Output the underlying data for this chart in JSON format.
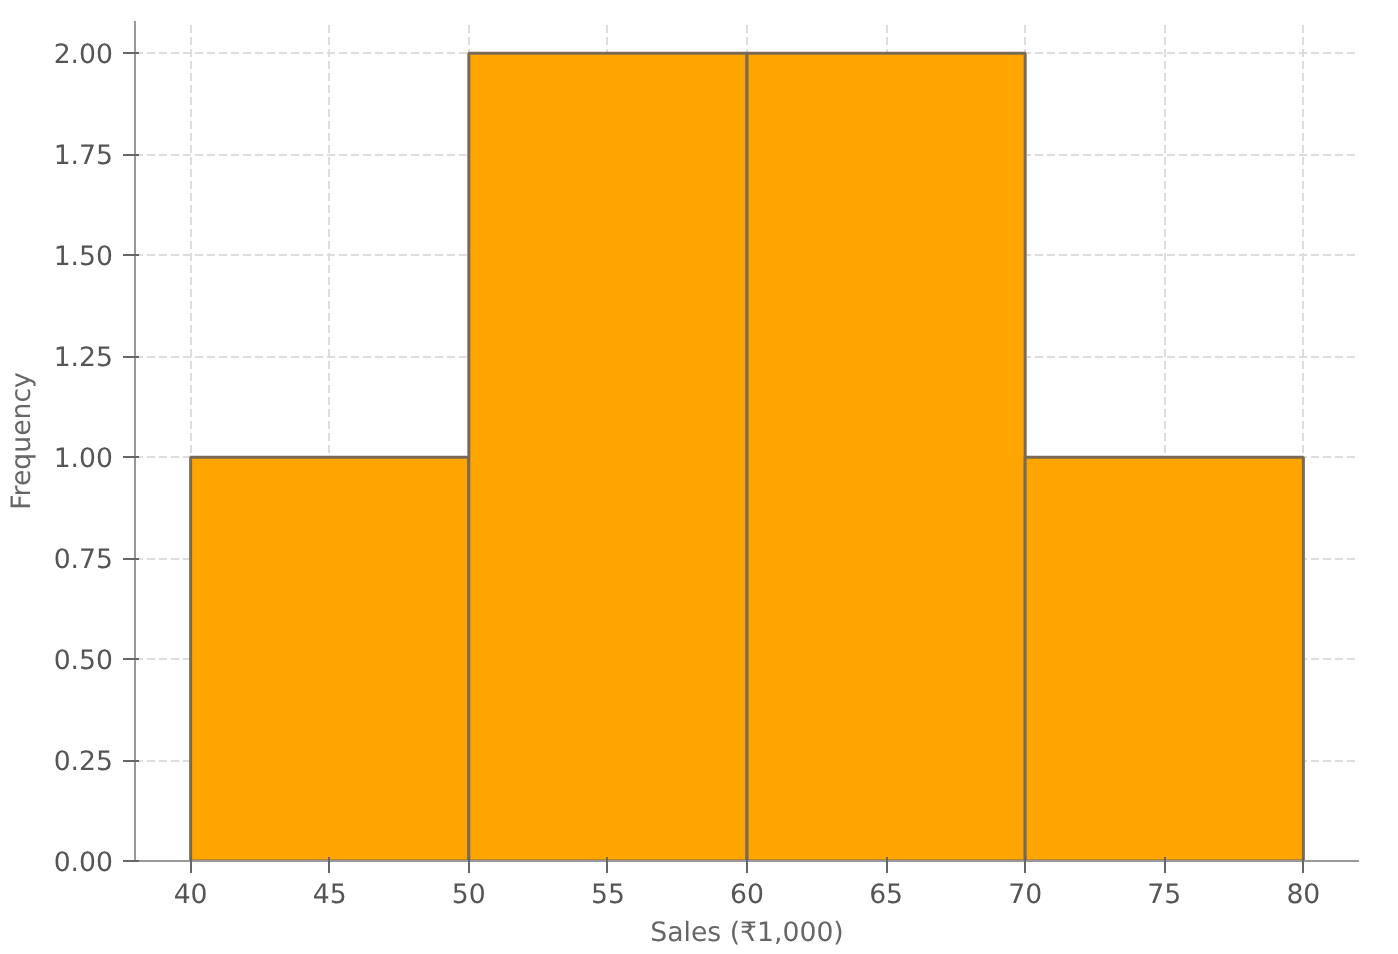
{
  "chart_data": {
    "type": "histogram",
    "xlabel": "Sales (₹1,000)",
    "ylabel": "Frequency",
    "bins": [
      40,
      50,
      60,
      70,
      80
    ],
    "values": [
      1,
      2,
      2,
      1
    ],
    "color": "#ffa500",
    "xlim": [
      38,
      82
    ],
    "ylim": [
      0,
      2.08
    ],
    "xticks": [
      40,
      45,
      50,
      55,
      60,
      65,
      70,
      75,
      80
    ],
    "yticks": [
      {
        "value": 0,
        "label": "0.00"
      },
      {
        "value": 0.25,
        "label": "0.25"
      },
      {
        "value": 0.5,
        "label": "0.50"
      },
      {
        "value": 0.75,
        "label": "0.75"
      },
      {
        "value": 1,
        "label": "1.00"
      },
      {
        "value": 1.25,
        "label": "1.25"
      },
      {
        "value": 1.5,
        "label": "1.50"
      },
      {
        "value": 1.75,
        "label": "1.75"
      },
      {
        "value": 2,
        "label": "2.00"
      }
    ],
    "grid": true
  }
}
